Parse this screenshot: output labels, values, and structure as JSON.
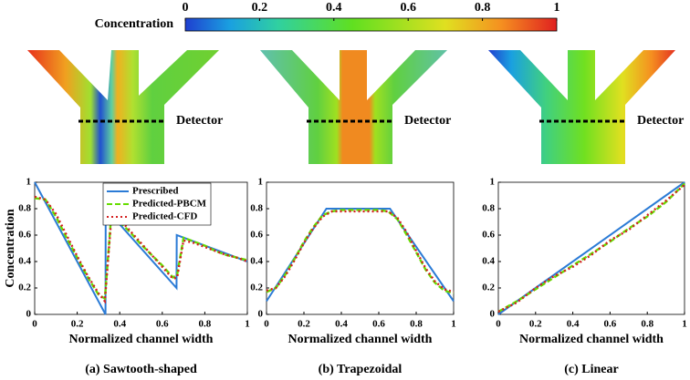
{
  "colorbar": {
    "label": "Concentration",
    "lim": [
      0,
      1
    ],
    "ticks": [
      0,
      0.2,
      0.4,
      0.6,
      0.8,
      1
    ]
  },
  "detectors": [
    "Detector",
    "Detector",
    "Detector"
  ],
  "chart_data": [
    {
      "type": "line",
      "caption": "(a) Sawtooth-shaped",
      "xlabel": "Normalized channel width",
      "ylabel": "Concentration",
      "xlim": [
        0,
        1
      ],
      "ylim": [
        0,
        1
      ],
      "xticks": [
        0,
        0.2,
        0.4,
        0.6,
        0.8,
        1
      ],
      "yticks": [
        0,
        0.2,
        0.4,
        0.6,
        0.8,
        1
      ],
      "legend": "top-right",
      "series": [
        {
          "name": "Prescribed",
          "color": "#2b7bd6",
          "style": "solid",
          "x": [
            0,
            0.333,
            0.334,
            0.667,
            0.668,
            1
          ],
          "values": [
            1,
            0,
            0.8,
            0.2,
            0.6,
            0.4
          ]
        },
        {
          "name": "Predicted-PBCM",
          "color": "#66dd00",
          "style": "dashed",
          "x": [
            0,
            0.05,
            0.1,
            0.15,
            0.2,
            0.25,
            0.3,
            0.33,
            0.36,
            0.4,
            0.45,
            0.5,
            0.55,
            0.6,
            0.65,
            0.67,
            0.7,
            0.75,
            0.8,
            0.85,
            0.9,
            0.95,
            1
          ],
          "values": [
            0.88,
            0.87,
            0.74,
            0.58,
            0.43,
            0.28,
            0.15,
            0.12,
            0.75,
            0.7,
            0.62,
            0.53,
            0.45,
            0.37,
            0.28,
            0.3,
            0.58,
            0.55,
            0.52,
            0.48,
            0.45,
            0.43,
            0.41
          ]
        },
        {
          "name": "Predicted-CFD",
          "color": "#d42020",
          "style": "dotted",
          "x": [
            0,
            0.05,
            0.1,
            0.15,
            0.2,
            0.25,
            0.3,
            0.33,
            0.36,
            0.4,
            0.45,
            0.5,
            0.55,
            0.6,
            0.65,
            0.67,
            0.7,
            0.75,
            0.8,
            0.85,
            0.9,
            0.95,
            1
          ],
          "values": [
            0.89,
            0.87,
            0.76,
            0.6,
            0.44,
            0.29,
            0.16,
            0.1,
            0.72,
            0.72,
            0.63,
            0.54,
            0.45,
            0.36,
            0.27,
            0.28,
            0.56,
            0.54,
            0.51,
            0.48,
            0.45,
            0.43,
            0.4
          ]
        }
      ]
    },
    {
      "type": "line",
      "caption": "(b) Trapezoidal",
      "xlabel": "Normalized channel width",
      "xlim": [
        0,
        1
      ],
      "ylim": [
        0,
        1
      ],
      "xticks": [
        0,
        0.2,
        0.4,
        0.6,
        0.8,
        1
      ],
      "yticks": [
        0,
        0.2,
        0.4,
        0.6,
        0.8,
        1
      ],
      "series": [
        {
          "color": "#2b7bd6",
          "style": "solid",
          "x": [
            0,
            0.32,
            0.66,
            1
          ],
          "values": [
            0.1,
            0.8,
            0.8,
            0.1
          ]
        },
        {
          "color": "#66dd00",
          "style": "dashed",
          "x": [
            0,
            0.05,
            0.1,
            0.15,
            0.2,
            0.25,
            0.3,
            0.35,
            0.4,
            0.5,
            0.6,
            0.65,
            0.7,
            0.75,
            0.8,
            0.85,
            0.9,
            0.95,
            1
          ],
          "values": [
            0.17,
            0.2,
            0.3,
            0.42,
            0.55,
            0.66,
            0.75,
            0.78,
            0.79,
            0.79,
            0.79,
            0.78,
            0.72,
            0.6,
            0.47,
            0.34,
            0.24,
            0.18,
            0.16
          ]
        },
        {
          "color": "#d42020",
          "style": "dotted",
          "x": [
            0,
            0.05,
            0.1,
            0.15,
            0.2,
            0.25,
            0.3,
            0.35,
            0.4,
            0.5,
            0.6,
            0.65,
            0.7,
            0.75,
            0.8,
            0.85,
            0.9,
            0.95,
            1
          ],
          "values": [
            0.18,
            0.2,
            0.29,
            0.41,
            0.54,
            0.65,
            0.74,
            0.78,
            0.78,
            0.78,
            0.78,
            0.78,
            0.73,
            0.62,
            0.48,
            0.35,
            0.25,
            0.19,
            0.17
          ]
        }
      ]
    },
    {
      "type": "line",
      "caption": "(c) Linear",
      "xlabel": "Normalized channel width",
      "xlim": [
        0,
        1
      ],
      "ylim": [
        0,
        1
      ],
      "xticks": [
        0,
        0.2,
        0.4,
        0.6,
        0.8,
        1
      ],
      "yticks": [
        0,
        0.2,
        0.4,
        0.6,
        0.8,
        1
      ],
      "series": [
        {
          "color": "#2b7bd6",
          "style": "solid",
          "x": [
            0,
            1
          ],
          "values": [
            0,
            1
          ]
        },
        {
          "color": "#66dd00",
          "style": "dashed",
          "x": [
            0,
            0.1,
            0.2,
            0.3,
            0.4,
            0.5,
            0.6,
            0.7,
            0.8,
            0.9,
            1
          ],
          "values": [
            0.02,
            0.1,
            0.19,
            0.28,
            0.37,
            0.46,
            0.55,
            0.65,
            0.74,
            0.85,
            0.99
          ]
        },
        {
          "color": "#d42020",
          "style": "dotted",
          "x": [
            0,
            0.1,
            0.2,
            0.3,
            0.4,
            0.5,
            0.6,
            0.7,
            0.8,
            0.9,
            1
          ],
          "values": [
            0.02,
            0.09,
            0.2,
            0.29,
            0.36,
            0.45,
            0.56,
            0.64,
            0.75,
            0.86,
            0.98
          ]
        }
      ]
    }
  ]
}
